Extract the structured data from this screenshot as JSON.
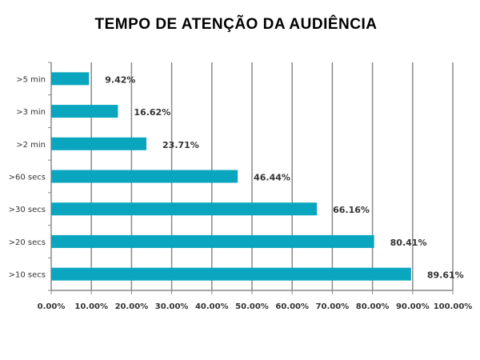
{
  "chart_data": {
    "type": "bar",
    "orientation": "horizontal",
    "title": "TEMPO DE ATENÇÃO DA AUDIÊNCIA",
    "categories": [
      ">5 min",
      ">3 min",
      ">2 min",
      ">60 secs",
      ">30 secs",
      ">20 secs",
      ">10 secs"
    ],
    "values": [
      9.42,
      16.62,
      23.71,
      46.44,
      66.16,
      80.41,
      89.61
    ],
    "data_labels": [
      "9.42%",
      "16.62%",
      "23.71%",
      "46.44%",
      "66.16%",
      "80.41%",
      "89.61%"
    ],
    "xlim": [
      0,
      100
    ],
    "x_ticks": [
      "0.00%",
      "10.00%",
      "20.00%",
      "30.00%",
      "40.00%",
      "50.00%",
      "60.00%",
      "70.00%",
      "80.00%",
      "90.00%",
      "100.00%"
    ],
    "xlabel": "",
    "ylabel": "",
    "grid": "vertical",
    "legend": "none",
    "bar_color": "#0aa6c0",
    "grid_color": "#8a8a8a"
  }
}
